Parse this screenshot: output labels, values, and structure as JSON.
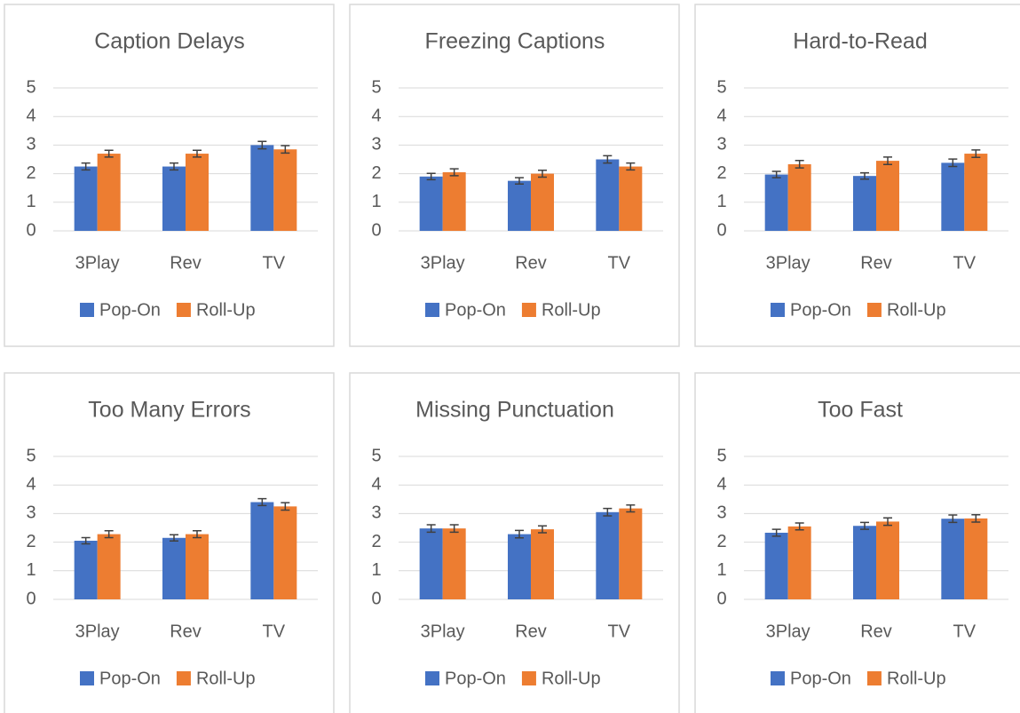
{
  "chart_data": [
    {
      "type": "bar",
      "title": "Caption Delays",
      "categories": [
        "3Play",
        "Rev",
        "TV"
      ],
      "series": [
        {
          "name": "Pop-On",
          "color": "#4472c4",
          "values": [
            2.25,
            2.25,
            3.0
          ],
          "errors": [
            0.12,
            0.12,
            0.13
          ]
        },
        {
          "name": "Roll-Up",
          "color": "#ed7d31",
          "values": [
            2.7,
            2.7,
            2.85
          ],
          "errors": [
            0.12,
            0.12,
            0.13
          ]
        }
      ],
      "ylim": [
        0,
        5
      ],
      "yticks": [
        0,
        1,
        2,
        3,
        4,
        5
      ],
      "grid": true,
      "legend": "bottom"
    },
    {
      "type": "bar",
      "title": "Freezing Captions",
      "categories": [
        "3Play",
        "Rev",
        "TV"
      ],
      "series": [
        {
          "name": "Pop-On",
          "color": "#4472c4",
          "values": [
            1.9,
            1.75,
            2.5
          ],
          "errors": [
            0.11,
            0.11,
            0.13
          ]
        },
        {
          "name": "Roll-Up",
          "color": "#ed7d31",
          "values": [
            2.05,
            2.0,
            2.25
          ],
          "errors": [
            0.12,
            0.12,
            0.12
          ]
        }
      ],
      "ylim": [
        0,
        5
      ],
      "yticks": [
        0,
        1,
        2,
        3,
        4,
        5
      ],
      "grid": true,
      "legend": "bottom"
    },
    {
      "type": "bar",
      "title": "Hard-to-Read",
      "categories": [
        "3Play",
        "Rev",
        "TV"
      ],
      "series": [
        {
          "name": "Pop-On",
          "color": "#4472c4",
          "values": [
            1.97,
            1.92,
            2.38
          ],
          "errors": [
            0.11,
            0.11,
            0.13
          ]
        },
        {
          "name": "Roll-Up",
          "color": "#ed7d31",
          "values": [
            2.33,
            2.45,
            2.7
          ],
          "errors": [
            0.13,
            0.13,
            0.13
          ]
        }
      ],
      "ylim": [
        0,
        5
      ],
      "yticks": [
        0,
        1,
        2,
        3,
        4,
        5
      ],
      "grid": true,
      "legend": "bottom"
    },
    {
      "type": "bar",
      "title": "Too Many Errors",
      "categories": [
        "3Play",
        "Rev",
        "TV"
      ],
      "series": [
        {
          "name": "Pop-On",
          "color": "#4472c4",
          "values": [
            2.05,
            2.15,
            3.4
          ],
          "errors": [
            0.11,
            0.11,
            0.12
          ]
        },
        {
          "name": "Roll-Up",
          "color": "#ed7d31",
          "values": [
            2.28,
            2.28,
            3.25
          ],
          "errors": [
            0.12,
            0.12,
            0.13
          ]
        }
      ],
      "ylim": [
        0,
        5
      ],
      "yticks": [
        0,
        1,
        2,
        3,
        4,
        5
      ],
      "grid": true,
      "legend": "bottom"
    },
    {
      "type": "bar",
      "title": "Missing Punctuation",
      "categories": [
        "3Play",
        "Rev",
        "TV"
      ],
      "series": [
        {
          "name": "Pop-On",
          "color": "#4472c4",
          "values": [
            2.48,
            2.28,
            3.05
          ],
          "errors": [
            0.13,
            0.13,
            0.13
          ]
        },
        {
          "name": "Roll-Up",
          "color": "#ed7d31",
          "values": [
            2.48,
            2.45,
            3.18
          ],
          "errors": [
            0.13,
            0.12,
            0.12
          ]
        }
      ],
      "ylim": [
        0,
        5
      ],
      "yticks": [
        0,
        1,
        2,
        3,
        4,
        5
      ],
      "grid": true,
      "legend": "bottom"
    },
    {
      "type": "bar",
      "title": "Too Fast",
      "categories": [
        "3Play",
        "Rev",
        "TV"
      ],
      "series": [
        {
          "name": "Pop-On",
          "color": "#4472c4",
          "values": [
            2.33,
            2.57,
            2.82
          ],
          "errors": [
            0.12,
            0.12,
            0.13
          ]
        },
        {
          "name": "Roll-Up",
          "color": "#ed7d31",
          "values": [
            2.55,
            2.72,
            2.83
          ],
          "errors": [
            0.12,
            0.13,
            0.13
          ]
        }
      ],
      "ylim": [
        0,
        5
      ],
      "yticks": [
        0,
        1,
        2,
        3,
        4,
        5
      ],
      "grid": true,
      "legend": "bottom"
    }
  ]
}
